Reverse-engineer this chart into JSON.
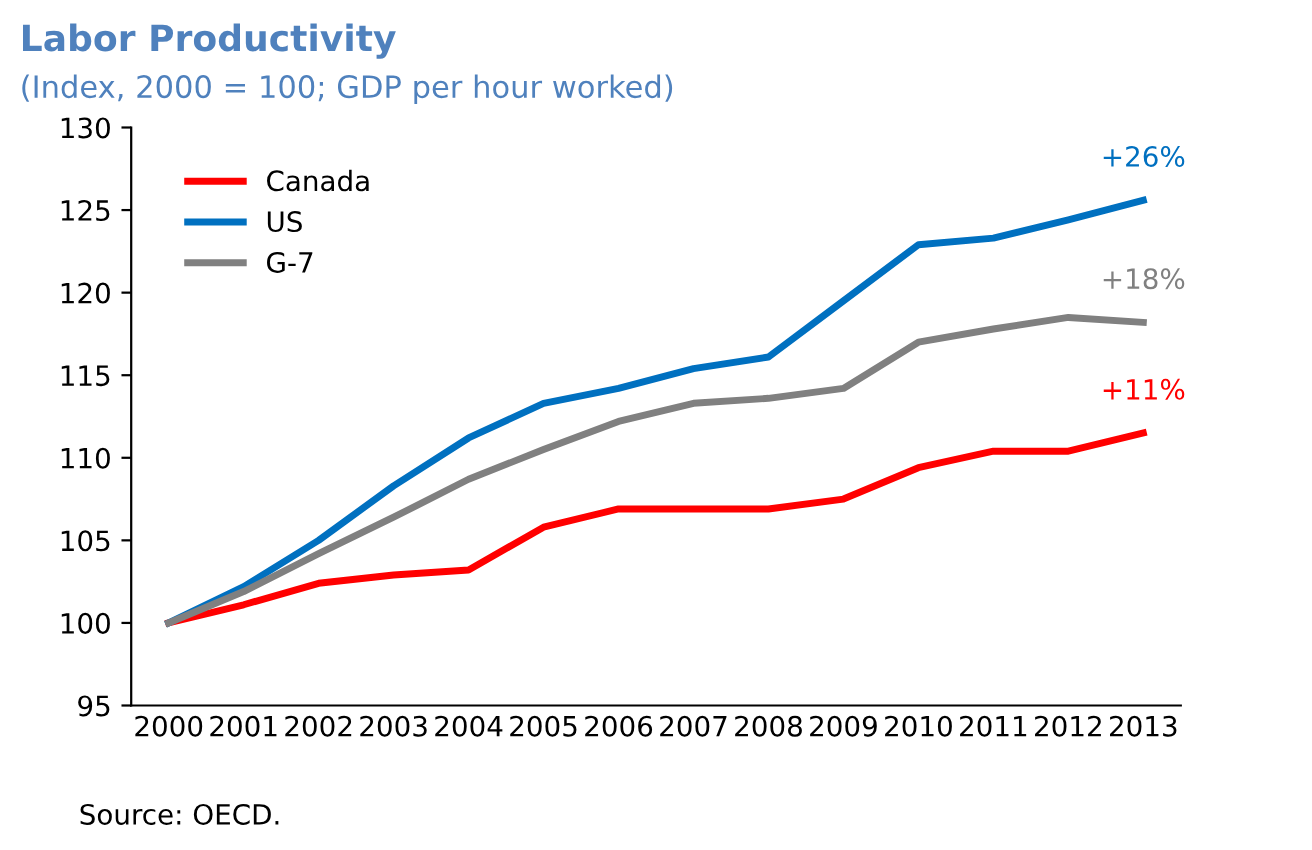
{
  "chart_data": {
    "type": "line",
    "title": "Labor Productivity",
    "subtitle": "(Index, 2000 = 100; GDP per hour worked)",
    "categories": [
      "2000",
      "2001",
      "2002",
      "2003",
      "2004",
      "2005",
      "2006",
      "2007",
      "2008",
      "2009",
      "2010",
      "2011",
      "2012",
      "2013"
    ],
    "series": [
      {
        "name": "Canada",
        "color": "#ff0000",
        "values": [
          100,
          101.1,
          102.4,
          102.9,
          103.2,
          105.8,
          106.9,
          106.9,
          106.9,
          107.5,
          109.4,
          110.4,
          110.4,
          111.5
        ]
      },
      {
        "name": "US",
        "color": "#0070c0",
        "values": [
          100,
          102.2,
          105,
          108.3,
          111.2,
          113.3,
          114.2,
          115.4,
          116.1,
          119.5,
          122.9,
          123.3,
          124.4,
          125.6
        ]
      },
      {
        "name": "G-7",
        "color": "#808080",
        "values": [
          100,
          101.9,
          104.2,
          106.4,
          108.7,
          110.5,
          112.2,
          113.3,
          113.6,
          114.2,
          117,
          117.8,
          118.5,
          118.2
        ]
      }
    ],
    "annotations": [
      {
        "text": "+11%",
        "x": "2013",
        "y": 111.5
      },
      {
        "text": "+26%",
        "x": "2013",
        "y": 125.6
      },
      {
        "text": "+18%",
        "x": "2013",
        "y": 118.2
      },
      "Source: OECD."
    ],
    "ylim": [
      95,
      130
    ],
    "yticks": [
      95,
      100,
      105,
      110,
      115,
      120,
      125,
      130
    ],
    "legend": "top left",
    "grid": false,
    "marker": "none",
    "line_style": "solid"
  }
}
